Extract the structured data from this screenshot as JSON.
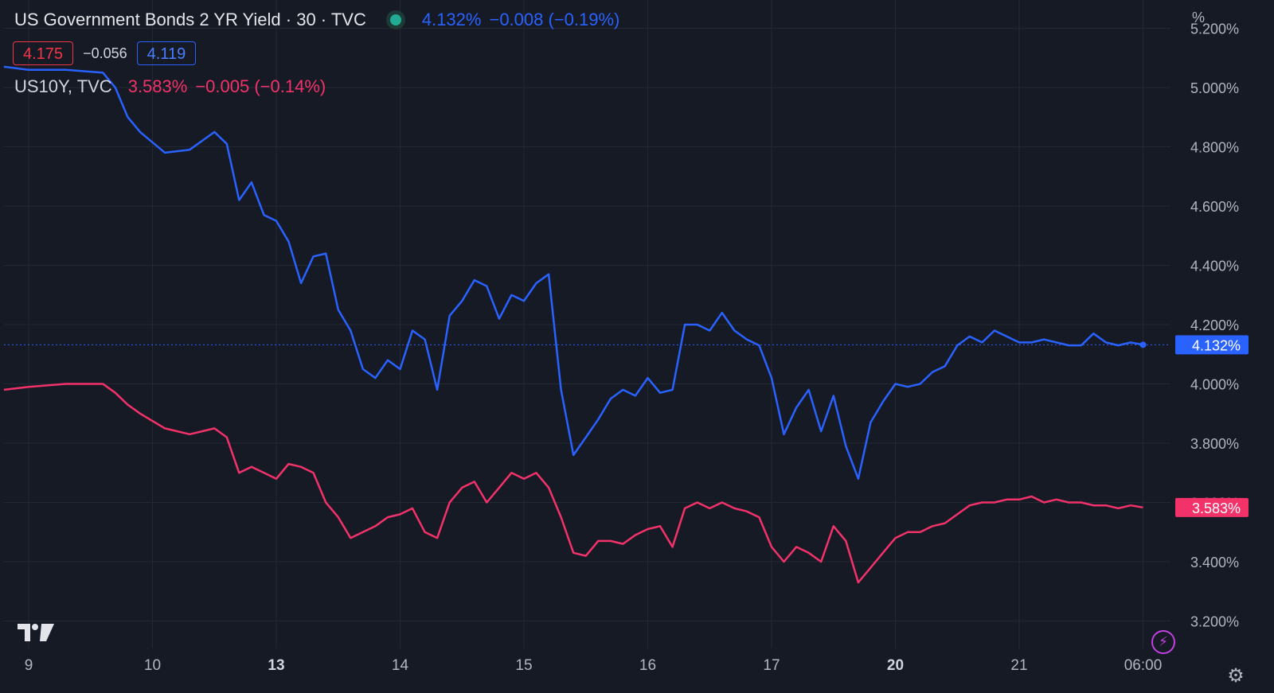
{
  "legend": {
    "title": "US Government Bonds 2 YR Yield · 30 · TVC",
    "last": "4.132%",
    "change": "−0.008 (−0.19%)",
    "bid": "4.175",
    "spread": "−0.056",
    "ask": "4.119",
    "series2_name": "US10Y, TVC",
    "series2_last": "3.583%",
    "series2_change": "−0.005 (−0.14%)"
  },
  "colors": {
    "background": "#161a25",
    "grid": "#242833",
    "series_2y": "#2962ff",
    "series_10y": "#f23269",
    "axis_text": "#b2b5be"
  },
  "chart_data": {
    "type": "line",
    "y_unit": "%",
    "ylim": [
      3.08,
      5.28
    ],
    "y_ticks": [
      "5.200%",
      "5.000%",
      "4.800%",
      "4.600%",
      "4.400%",
      "4.200%",
      "4.000%",
      "3.800%",
      "3.600%",
      "3.400%",
      "3.200%"
    ],
    "y_tick_values": [
      5.2,
      5.0,
      4.8,
      4.6,
      4.4,
      4.2,
      4.0,
      3.8,
      3.6,
      3.4,
      3.2
    ],
    "x_ticks": [
      {
        "label": "9",
        "bold": false,
        "t": 0.2
      },
      {
        "label": "10",
        "bold": false,
        "t": 1.2
      },
      {
        "label": "13",
        "bold": true,
        "t": 2.2
      },
      {
        "label": "14",
        "bold": false,
        "t": 3.2
      },
      {
        "label": "15",
        "bold": false,
        "t": 4.2
      },
      {
        "label": "16",
        "bold": false,
        "t": 5.2
      },
      {
        "label": "17",
        "bold": false,
        "t": 6.2
      },
      {
        "label": "20",
        "bold": true,
        "t": 7.2
      },
      {
        "label": "21",
        "bold": false,
        "t": 8.2
      },
      {
        "label": "06:00",
        "bold": false,
        "t": 9.2
      }
    ],
    "xlim": [
      0,
      9.2
    ],
    "grid": true,
    "series": [
      {
        "name": "US Government Bonds 2 YR Yield",
        "last_label": "4.132%",
        "t": [
          0.0,
          0.2,
          0.5,
          0.8,
          0.9,
          1.0,
          1.1,
          1.3,
          1.5,
          1.7,
          1.8,
          1.9,
          2.0,
          2.1,
          2.2,
          2.3,
          2.4,
          2.5,
          2.6,
          2.7,
          2.8,
          2.9,
          3.0,
          3.1,
          3.2,
          3.3,
          3.4,
          3.5,
          3.6,
          3.7,
          3.8,
          3.9,
          4.0,
          4.1,
          4.2,
          4.3,
          4.4,
          4.5,
          4.6,
          4.7,
          4.8,
          4.9,
          5.0,
          5.1,
          5.2,
          5.3,
          5.4,
          5.5,
          5.6,
          5.7,
          5.8,
          5.9,
          6.0,
          6.1,
          6.2,
          6.3,
          6.4,
          6.5,
          6.6,
          6.7,
          6.8,
          6.9,
          7.0,
          7.1,
          7.2,
          7.3,
          7.4,
          7.5,
          7.6,
          7.7,
          7.8,
          7.9,
          8.0,
          8.1,
          8.2,
          8.3,
          8.4,
          8.5,
          8.6,
          8.7,
          8.8,
          8.9,
          9.0,
          9.1,
          9.2
        ],
        "values": [
          5.07,
          5.06,
          5.06,
          5.05,
          5.0,
          4.9,
          4.85,
          4.78,
          4.79,
          4.85,
          4.81,
          4.62,
          4.68,
          4.57,
          4.55,
          4.48,
          4.34,
          4.43,
          4.44,
          4.25,
          4.18,
          4.05,
          4.02,
          4.08,
          4.05,
          4.18,
          4.15,
          3.98,
          4.23,
          4.28,
          4.35,
          4.33,
          4.22,
          4.3,
          4.28,
          4.34,
          4.37,
          3.98,
          3.76,
          3.82,
          3.88,
          3.95,
          3.98,
          3.96,
          4.02,
          3.97,
          3.98,
          4.2,
          4.2,
          4.18,
          4.24,
          4.18,
          4.15,
          4.13,
          4.02,
          3.83,
          3.92,
          3.98,
          3.84,
          3.96,
          3.79,
          3.68,
          3.87,
          3.94,
          4.0,
          3.99,
          4.0,
          4.04,
          4.06,
          4.13,
          4.16,
          4.14,
          4.18,
          4.16,
          4.14,
          4.14,
          4.15,
          4.14,
          4.13,
          4.13,
          4.17,
          4.14,
          4.13,
          4.14,
          4.132
        ]
      },
      {
        "name": "US10Y, TVC",
        "last_label": "3.583%",
        "t": [
          0.0,
          0.2,
          0.5,
          0.8,
          0.9,
          1.0,
          1.1,
          1.3,
          1.5,
          1.7,
          1.8,
          1.9,
          2.0,
          2.1,
          2.2,
          2.3,
          2.4,
          2.5,
          2.6,
          2.7,
          2.8,
          2.9,
          3.0,
          3.1,
          3.2,
          3.3,
          3.4,
          3.5,
          3.6,
          3.7,
          3.8,
          3.9,
          4.0,
          4.1,
          4.2,
          4.3,
          4.4,
          4.5,
          4.6,
          4.7,
          4.8,
          4.9,
          5.0,
          5.1,
          5.2,
          5.3,
          5.4,
          5.5,
          5.6,
          5.7,
          5.8,
          5.9,
          6.0,
          6.1,
          6.2,
          6.3,
          6.4,
          6.5,
          6.6,
          6.7,
          6.8,
          6.9,
          7.0,
          7.1,
          7.2,
          7.3,
          7.4,
          7.5,
          7.6,
          7.7,
          7.8,
          7.9,
          8.0,
          8.1,
          8.2,
          8.3,
          8.4,
          8.5,
          8.6,
          8.7,
          8.8,
          8.9,
          9.0,
          9.1,
          9.2
        ],
        "values": [
          3.98,
          3.99,
          4.0,
          4.0,
          3.97,
          3.93,
          3.9,
          3.85,
          3.83,
          3.85,
          3.82,
          3.7,
          3.72,
          3.7,
          3.68,
          3.73,
          3.72,
          3.7,
          3.6,
          3.55,
          3.48,
          3.5,
          3.52,
          3.55,
          3.56,
          3.58,
          3.5,
          3.48,
          3.6,
          3.65,
          3.67,
          3.6,
          3.65,
          3.7,
          3.68,
          3.7,
          3.65,
          3.55,
          3.43,
          3.42,
          3.47,
          3.47,
          3.46,
          3.49,
          3.51,
          3.52,
          3.45,
          3.58,
          3.6,
          3.58,
          3.6,
          3.58,
          3.57,
          3.55,
          3.45,
          3.4,
          3.45,
          3.43,
          3.4,
          3.52,
          3.47,
          3.33,
          3.38,
          3.43,
          3.48,
          3.5,
          3.5,
          3.52,
          3.53,
          3.56,
          3.59,
          3.6,
          3.6,
          3.61,
          3.61,
          3.62,
          3.6,
          3.61,
          3.6,
          3.6,
          3.59,
          3.59,
          3.58,
          3.59,
          3.583
        ]
      }
    ],
    "last_line_value": 4.132
  },
  "icons": {
    "logo": "tradingview-logo-icon",
    "bolt": "lightning-icon",
    "settings": "gear-icon"
  }
}
